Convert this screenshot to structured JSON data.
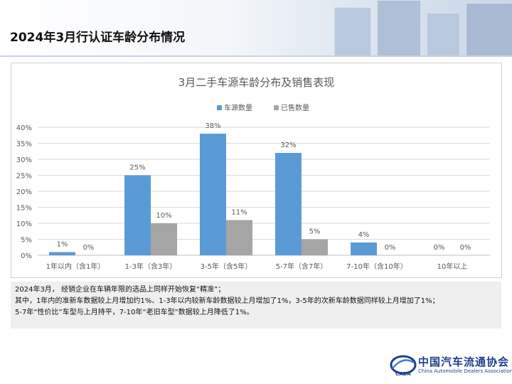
{
  "page": {
    "title": "2024年3月行认证车龄分布情况"
  },
  "notes": [
    "2024年3月， 经销企业在车辆年限的选品上同样开始恢复“精准”；",
    "其中，1年内的准新车数据较上月增加约1%、1-3年以内较新车龄数据较上月增加了1%，3-5年的次新车龄数据同样较上月增加了1%；",
    "5-7年“性价比”车型与上月持平，7-10年“老旧车型”数据较上月降低了1%。"
  ],
  "logo": {
    "name": "中国汽车流通协会",
    "en": "China Automobile Dealers Association",
    "emblem_text": "CADA"
  },
  "colors": {
    "series_1": "#5b9bd5",
    "series_2": "#a5a5a5",
    "grid": "#d9d9d9",
    "axis_text": "#595959"
  },
  "chart_data": {
    "type": "bar",
    "title": "3月二手车源车龄分布及销售表现",
    "xlabel": "",
    "ylabel": "",
    "categories": [
      "1年以内（含1年）",
      "1-3年（含3年）",
      "3-5年（含5年）",
      "5-7年（含7年）",
      "7-10年（含10年）",
      "10年以上"
    ],
    "series": [
      {
        "name": "车源数量",
        "values": [
          1,
          25,
          38,
          32,
          4,
          0
        ],
        "labels": [
          "1%",
          "25%",
          "38%",
          "32%",
          "4%",
          "0%"
        ]
      },
      {
        "name": "已售数量",
        "values": [
          0,
          10,
          11,
          5,
          0,
          0
        ],
        "labels": [
          "0%",
          "10%",
          "11%",
          "5%",
          "0%",
          "0%"
        ]
      }
    ],
    "ylim": [
      0,
      40
    ],
    "yticks": [
      0,
      5,
      10,
      15,
      20,
      25,
      30,
      35,
      40
    ],
    "ytick_labels": [
      "0%",
      "5%",
      "10%",
      "15%",
      "20%",
      "25%",
      "30%",
      "35%",
      "40%"
    ],
    "grid": true,
    "legend": "top-center"
  }
}
